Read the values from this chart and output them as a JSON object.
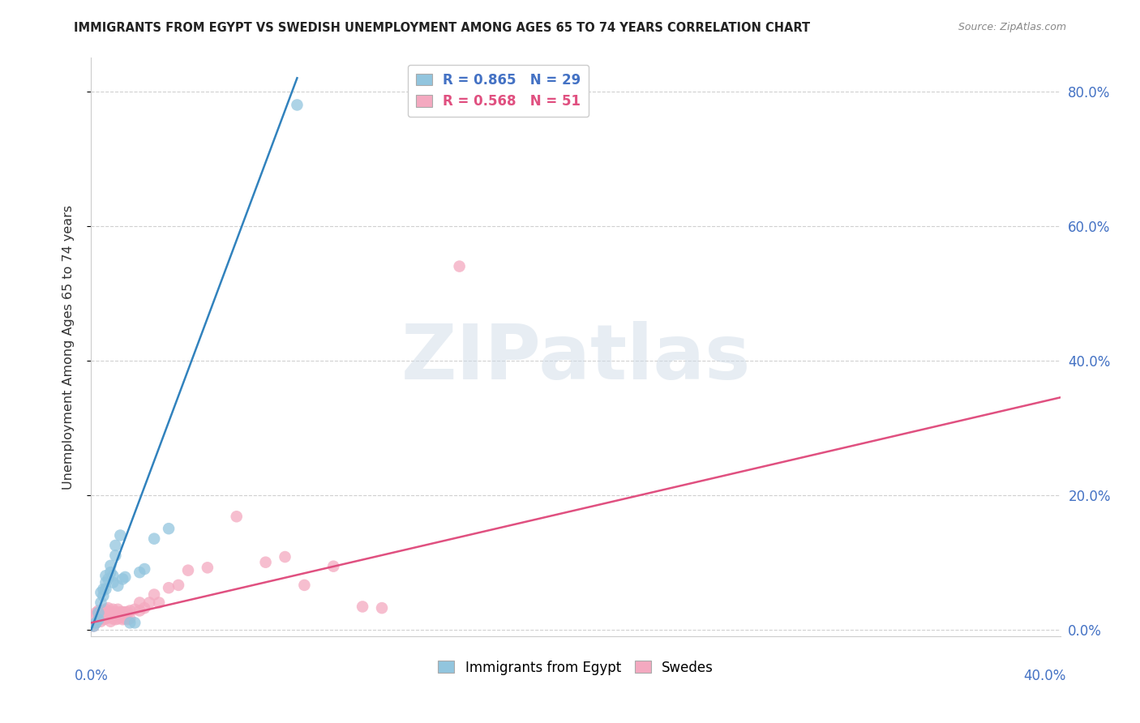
{
  "title": "IMMIGRANTS FROM EGYPT VS SWEDISH UNEMPLOYMENT AMONG AGES 65 TO 74 YEARS CORRELATION CHART",
  "source": "Source: ZipAtlas.com",
  "ylabel": "Unemployment Among Ages 65 to 74 years",
  "xlim": [
    0.0,
    0.4
  ],
  "ylim": [
    -0.01,
    0.85
  ],
  "yticks": [
    0.0,
    0.2,
    0.4,
    0.6,
    0.8
  ],
  "ytick_labels": [
    "0.0%",
    "20.0%",
    "40.0%",
    "60.0%",
    "80.0%"
  ],
  "xtick_labels": [
    "0.0%",
    "40.0%"
  ],
  "legend_blue_R": "0.865",
  "legend_blue_N": "29",
  "legend_pink_R": "0.568",
  "legend_pink_N": "51",
  "blue_color": "#92c5de",
  "blue_line_color": "#3182bd",
  "pink_color": "#f4a9c0",
  "pink_line_color": "#e05080",
  "background_color": "#ffffff",
  "grid_color": "#d0d0d0",
  "blue_scatter_x": [
    0.001,
    0.002,
    0.003,
    0.003,
    0.004,
    0.004,
    0.005,
    0.005,
    0.006,
    0.006,
    0.006,
    0.007,
    0.008,
    0.008,
    0.009,
    0.009,
    0.01,
    0.01,
    0.011,
    0.012,
    0.013,
    0.014,
    0.016,
    0.018,
    0.02,
    0.022,
    0.026,
    0.032,
    0.085
  ],
  "blue_scatter_y": [
    0.005,
    0.01,
    0.015,
    0.025,
    0.04,
    0.055,
    0.05,
    0.06,
    0.06,
    0.07,
    0.08,
    0.075,
    0.085,
    0.095,
    0.07,
    0.08,
    0.11,
    0.125,
    0.065,
    0.14,
    0.075,
    0.078,
    0.01,
    0.01,
    0.085,
    0.09,
    0.135,
    0.15,
    0.78
  ],
  "pink_scatter_x": [
    0.001,
    0.001,
    0.002,
    0.002,
    0.003,
    0.003,
    0.004,
    0.004,
    0.005,
    0.005,
    0.006,
    0.006,
    0.007,
    0.007,
    0.008,
    0.008,
    0.009,
    0.009,
    0.01,
    0.01,
    0.011,
    0.011,
    0.012,
    0.012,
    0.013,
    0.013,
    0.014,
    0.014,
    0.015,
    0.015,
    0.016,
    0.016,
    0.018,
    0.02,
    0.02,
    0.022,
    0.024,
    0.026,
    0.028,
    0.032,
    0.036,
    0.04,
    0.048,
    0.06,
    0.072,
    0.08,
    0.088,
    0.1,
    0.112,
    0.12,
    0.152
  ],
  "pink_scatter_y": [
    0.005,
    0.02,
    0.01,
    0.025,
    0.015,
    0.028,
    0.012,
    0.026,
    0.015,
    0.028,
    0.016,
    0.03,
    0.018,
    0.032,
    0.012,
    0.026,
    0.016,
    0.03,
    0.015,
    0.026,
    0.016,
    0.03,
    0.018,
    0.026,
    0.015,
    0.026,
    0.016,
    0.026,
    0.015,
    0.026,
    0.016,
    0.028,
    0.03,
    0.028,
    0.04,
    0.032,
    0.04,
    0.052,
    0.04,
    0.062,
    0.066,
    0.088,
    0.092,
    0.168,
    0.1,
    0.108,
    0.066,
    0.094,
    0.034,
    0.032,
    0.54
  ],
  "blue_trend_x": [
    0.0,
    0.085
  ],
  "blue_trend_y": [
    0.0,
    0.82
  ],
  "pink_trend_x": [
    0.0,
    0.4
  ],
  "pink_trend_y": [
    0.01,
    0.345
  ],
  "watermark": "ZIPatlas"
}
